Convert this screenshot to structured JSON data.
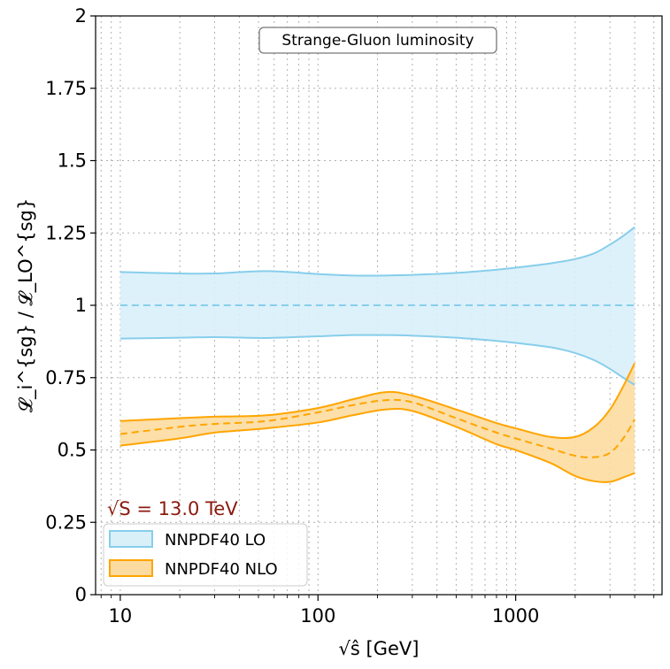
{
  "chart_data": {
    "type": "area",
    "title": "Strange-Gluon luminosity",
    "xlabel": "√ŝ [GeV]",
    "ylabel": "𝓛_i^{sg} / 𝓛_LO^{sg}",
    "xscale": "log",
    "xlim": [
      7.5,
      5500
    ],
    "ylim": [
      0,
      2
    ],
    "grid": true,
    "xticks": [
      10,
      100,
      1000
    ],
    "xtick_labels": [
      "10",
      "100",
      "1000"
    ],
    "yticks": [
      0,
      0.25,
      0.5,
      0.75,
      1,
      1.25,
      1.5,
      1.75,
      2
    ],
    "ytick_labels": [
      "0",
      "0.25",
      "0.5",
      "0.75",
      "1",
      "1.25",
      "1.5",
      "1.75",
      "2"
    ],
    "annotation": "√S = 13.0 TeV",
    "legend_position": "lower-left",
    "x": [
      10,
      20,
      30,
      55,
      100,
      150,
      220,
      300,
      500,
      800,
      1000,
      1500,
      2000,
      2500,
      3000,
      3500,
      4000
    ],
    "series": [
      {
        "name": "NNPDF40 LO",
        "color": "#87ceeb",
        "fill": "#d9f0f9",
        "central": [
          1.0,
          1.0,
          1.0,
          1.0,
          1.0,
          1.0,
          1.0,
          1.0,
          1.0,
          1.0,
          1.0,
          1.0,
          1.0,
          1.0,
          1.0,
          1.0,
          1.0
        ],
        "upper": [
          1.115,
          1.11,
          1.11,
          1.118,
          1.108,
          1.103,
          1.103,
          1.105,
          1.112,
          1.123,
          1.13,
          1.145,
          1.16,
          1.18,
          1.21,
          1.24,
          1.27
        ],
        "lower": [
          0.885,
          0.888,
          0.89,
          0.887,
          0.893,
          0.897,
          0.897,
          0.895,
          0.888,
          0.877,
          0.87,
          0.855,
          0.835,
          0.81,
          0.78,
          0.75,
          0.725
        ]
      },
      {
        "name": "NNPDF40 NLO",
        "color": "#ffa500",
        "fill": "#fcdba0",
        "central": [
          0.555,
          0.58,
          0.59,
          0.6,
          0.63,
          0.655,
          0.672,
          0.665,
          0.61,
          0.56,
          0.54,
          0.505,
          0.48,
          0.475,
          0.49,
          0.54,
          0.605
        ],
        "upper": [
          0.6,
          0.61,
          0.615,
          0.62,
          0.645,
          0.675,
          0.7,
          0.688,
          0.64,
          0.593,
          0.575,
          0.545,
          0.545,
          0.58,
          0.64,
          0.72,
          0.8
        ],
        "lower": [
          0.515,
          0.54,
          0.56,
          0.575,
          0.595,
          0.62,
          0.64,
          0.635,
          0.58,
          0.52,
          0.5,
          0.455,
          0.41,
          0.392,
          0.39,
          0.405,
          0.42
        ]
      }
    ]
  }
}
